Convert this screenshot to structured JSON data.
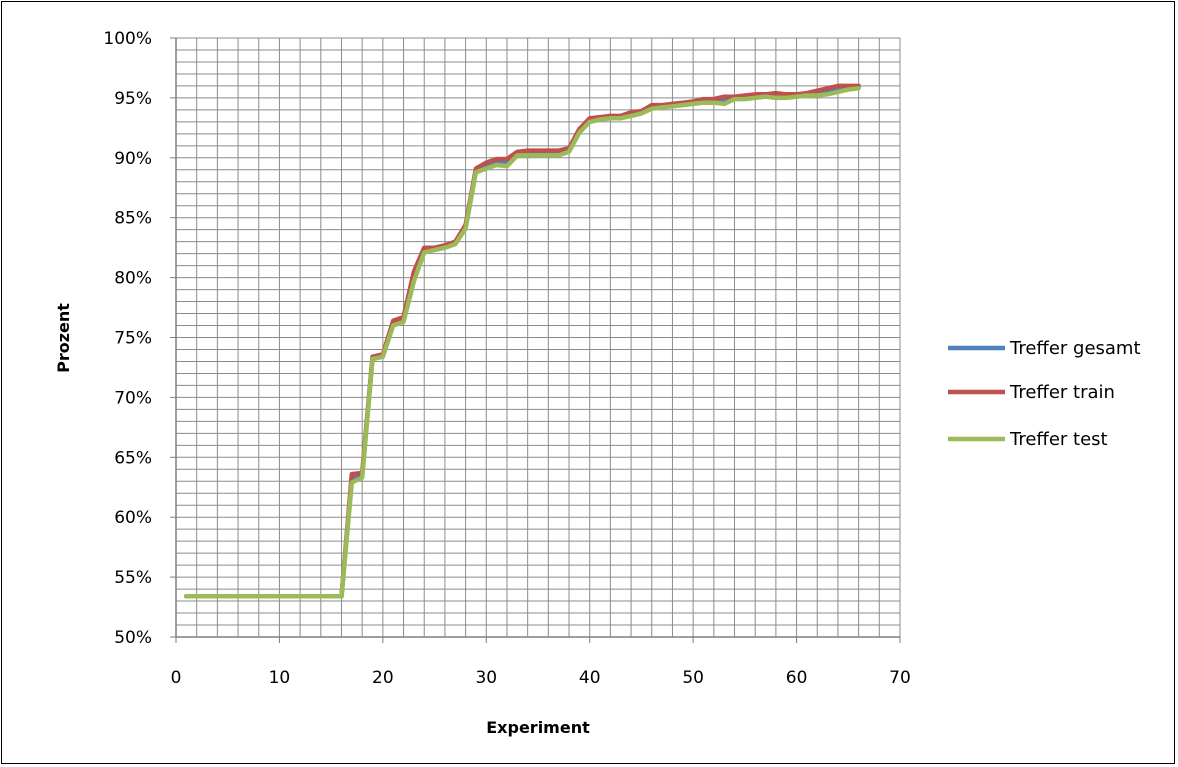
{
  "chart_data": {
    "type": "line",
    "title": "",
    "xlabel": "Experiment",
    "ylabel": "Prozent",
    "xlim": [
      0,
      70
    ],
    "ylim": [
      0.5,
      1.0
    ],
    "x_ticks": [
      "0",
      "10",
      "20",
      "30",
      "40",
      "50",
      "60",
      "70"
    ],
    "y_ticks": [
      "50%",
      "55%",
      "60%",
      "65%",
      "70%",
      "75%",
      "80%",
      "85%",
      "90%",
      "95%",
      "100%"
    ],
    "grid": true,
    "legend_position": "right",
    "series": [
      {
        "name": "Treffer gesamt",
        "color": "#4F81BD",
        "x": [
          1,
          2,
          3,
          4,
          5,
          6,
          7,
          8,
          9,
          10,
          11,
          12,
          13,
          14,
          15,
          16,
          17,
          18,
          19,
          20,
          21,
          22,
          23,
          24,
          25,
          26,
          27,
          28,
          29,
          30,
          31,
          32,
          33,
          34,
          35,
          36,
          37,
          38,
          39,
          40,
          41,
          42,
          43,
          44,
          45,
          46,
          47,
          48,
          49,
          50,
          51,
          52,
          53,
          54,
          55,
          56,
          57,
          58,
          59,
          60,
          61,
          62,
          63,
          64,
          65,
          66
        ],
        "values": [
          0.534,
          0.534,
          0.534,
          0.534,
          0.534,
          0.534,
          0.534,
          0.534,
          0.534,
          0.534,
          0.534,
          0.534,
          0.534,
          0.534,
          0.534,
          0.534,
          0.632,
          0.635,
          0.733,
          0.735,
          0.762,
          0.765,
          0.8,
          0.823,
          0.824,
          0.826,
          0.829,
          0.842,
          0.889,
          0.893,
          0.896,
          0.896,
          0.903,
          0.904,
          0.904,
          0.904,
          0.904,
          0.906,
          0.922,
          0.931,
          0.933,
          0.934,
          0.934,
          0.936,
          0.938,
          0.942,
          0.943,
          0.944,
          0.945,
          0.946,
          0.947,
          0.948,
          0.948,
          0.95,
          0.95,
          0.951,
          0.952,
          0.951,
          0.952,
          0.952,
          0.953,
          0.953,
          0.955,
          0.957,
          0.959,
          0.959
        ]
      },
      {
        "name": "Treffer train",
        "color": "#C0504D",
        "x": [
          1,
          2,
          3,
          4,
          5,
          6,
          7,
          8,
          9,
          10,
          11,
          12,
          13,
          14,
          15,
          16,
          17,
          18,
          19,
          20,
          21,
          22,
          23,
          24,
          25,
          26,
          27,
          28,
          29,
          30,
          31,
          32,
          33,
          34,
          35,
          36,
          37,
          38,
          39,
          40,
          41,
          42,
          43,
          44,
          45,
          46,
          47,
          48,
          49,
          50,
          51,
          52,
          53,
          54,
          55,
          56,
          57,
          58,
          59,
          60,
          61,
          62,
          63,
          64,
          65,
          66
        ],
        "values": [
          0.534,
          0.534,
          0.534,
          0.534,
          0.534,
          0.534,
          0.534,
          0.534,
          0.534,
          0.534,
          0.534,
          0.534,
          0.534,
          0.534,
          0.534,
          0.534,
          0.636,
          0.637,
          0.734,
          0.736,
          0.764,
          0.767,
          0.805,
          0.825,
          0.825,
          0.827,
          0.83,
          0.844,
          0.891,
          0.896,
          0.899,
          0.899,
          0.905,
          0.906,
          0.906,
          0.906,
          0.906,
          0.908,
          0.924,
          0.933,
          0.934,
          0.935,
          0.935,
          0.938,
          0.939,
          0.944,
          0.944,
          0.945,
          0.946,
          0.947,
          0.949,
          0.949,
          0.951,
          0.951,
          0.952,
          0.953,
          0.953,
          0.954,
          0.953,
          0.953,
          0.954,
          0.956,
          0.958,
          0.96,
          0.96,
          0.96
        ]
      },
      {
        "name": "Treffer test",
        "color": "#9BBB59",
        "x": [
          1,
          2,
          3,
          4,
          5,
          6,
          7,
          8,
          9,
          10,
          11,
          12,
          13,
          14,
          15,
          16,
          17,
          18,
          19,
          20,
          21,
          22,
          23,
          24,
          25,
          26,
          27,
          28,
          29,
          30,
          31,
          32,
          33,
          34,
          35,
          36,
          37,
          38,
          39,
          40,
          41,
          42,
          43,
          44,
          45,
          46,
          47,
          48,
          49,
          50,
          51,
          52,
          53,
          54,
          55,
          56,
          57,
          58,
          59,
          60,
          61,
          62,
          63,
          64,
          65,
          66
        ],
        "values": [
          0.534,
          0.534,
          0.534,
          0.534,
          0.534,
          0.534,
          0.534,
          0.534,
          0.534,
          0.534,
          0.534,
          0.534,
          0.534,
          0.534,
          0.534,
          0.534,
          0.629,
          0.633,
          0.732,
          0.734,
          0.76,
          0.763,
          0.797,
          0.821,
          0.823,
          0.825,
          0.828,
          0.841,
          0.888,
          0.891,
          0.894,
          0.893,
          0.902,
          0.902,
          0.902,
          0.902,
          0.902,
          0.905,
          0.921,
          0.93,
          0.932,
          0.933,
          0.933,
          0.935,
          0.937,
          0.941,
          0.942,
          0.943,
          0.944,
          0.945,
          0.946,
          0.946,
          0.945,
          0.949,
          0.949,
          0.95,
          0.951,
          0.95,
          0.95,
          0.951,
          0.952,
          0.952,
          0.953,
          0.955,
          0.957,
          0.958
        ]
      }
    ]
  }
}
